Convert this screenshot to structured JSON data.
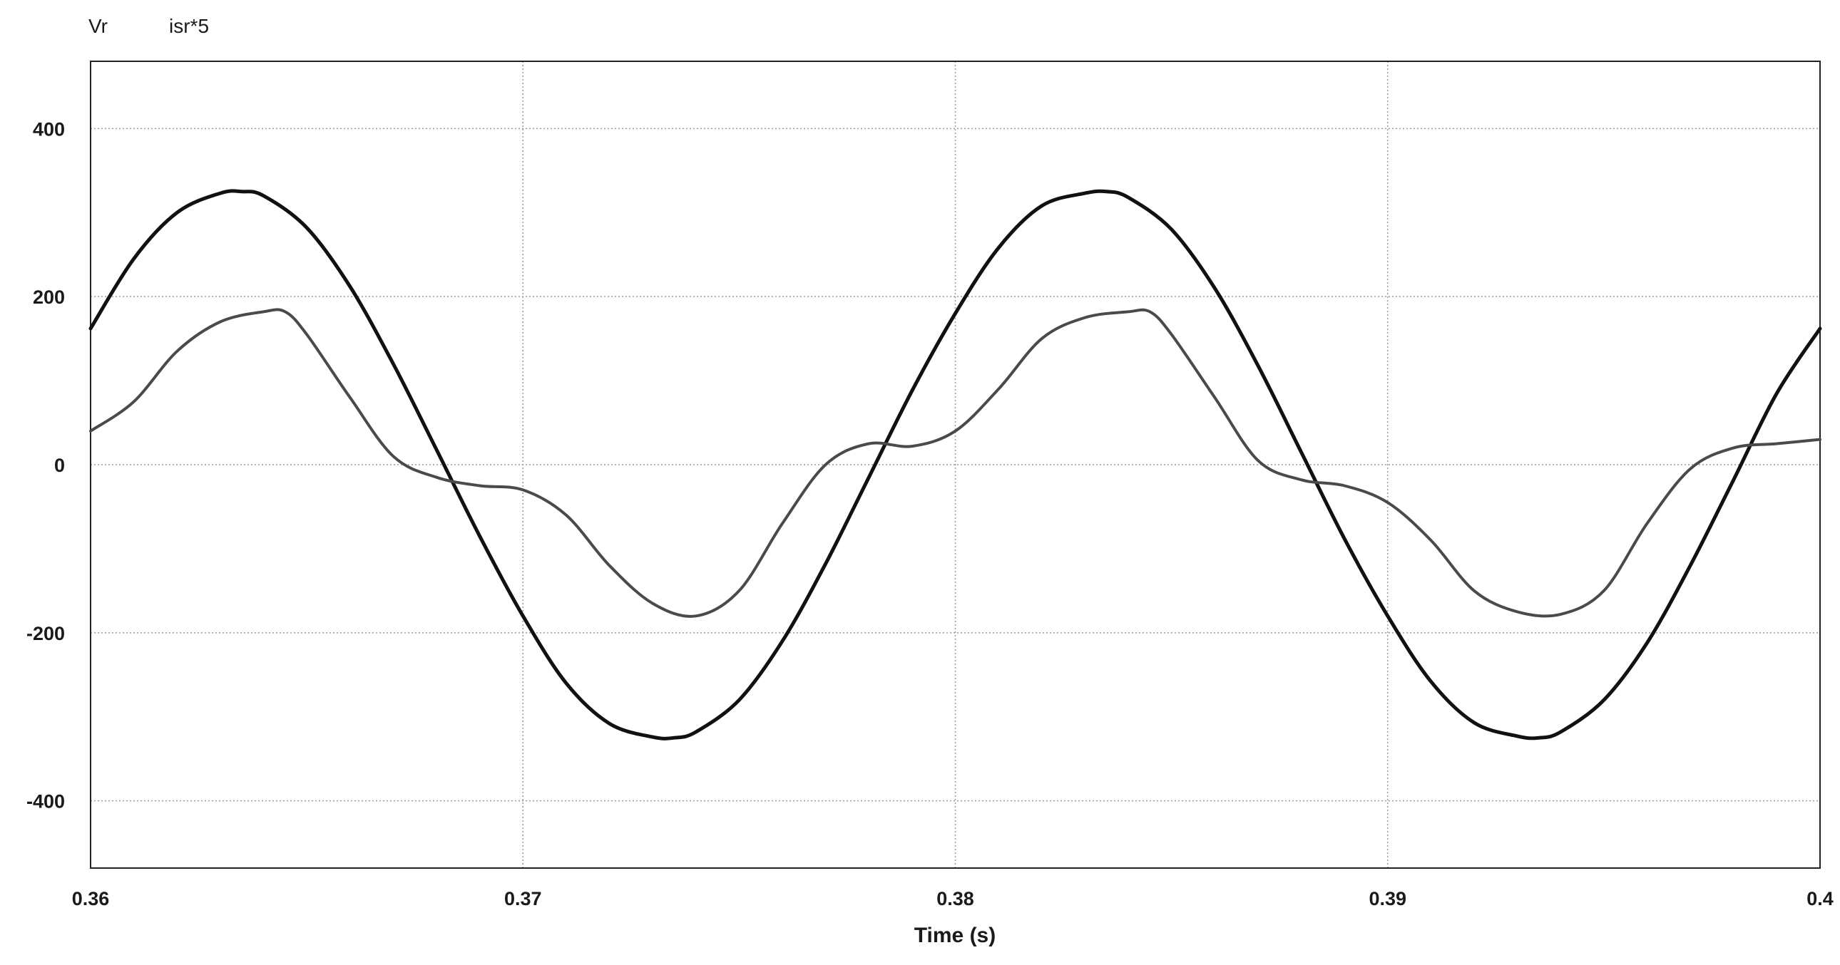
{
  "chart_data": {
    "type": "line",
    "title": "",
    "xlabel": "Time (s)",
    "ylabel": "",
    "xlim": [
      0.36,
      0.4
    ],
    "ylim": [
      -480,
      480
    ],
    "x_ticks": [
      "0.36",
      "0.37",
      "0.38",
      "0.39",
      "0.4"
    ],
    "y_ticks": [
      "400",
      "200",
      "0",
      "-200",
      "-400"
    ],
    "grid": true,
    "legend_position": "top-left",
    "series": [
      {
        "name": "Vr",
        "color": "#111111",
        "x": [
          0.36,
          0.361,
          0.362,
          0.363,
          0.3635,
          0.364,
          0.365,
          0.366,
          0.367,
          0.368,
          0.369,
          0.37,
          0.371,
          0.372,
          0.373,
          0.3735,
          0.374,
          0.375,
          0.376,
          0.377,
          0.378,
          0.379,
          0.38,
          0.381,
          0.382,
          0.383,
          0.3835,
          0.384,
          0.385,
          0.386,
          0.387,
          0.388,
          0.389,
          0.39,
          0.391,
          0.392,
          0.393,
          0.3935,
          0.394,
          0.395,
          0.396,
          0.397,
          0.398,
          0.399,
          0.4
        ],
        "y": [
          162,
          245,
          300,
          323,
          325,
          320,
          282,
          212,
          120,
          18,
          -85,
          -180,
          -260,
          -308,
          -324,
          -325,
          -318,
          -280,
          -210,
          -118,
          -15,
          88,
          180,
          258,
          308,
          323,
          325,
          318,
          280,
          210,
          118,
          15,
          -88,
          -180,
          -258,
          -307,
          -323,
          -325,
          -318,
          -280,
          -212,
          -120,
          -18,
          85,
          162
        ]
      },
      {
        "name": "isr*5",
        "color": "#4a4a4a",
        "x": [
          0.36,
          0.361,
          0.362,
          0.363,
          0.364,
          0.3645,
          0.365,
          0.366,
          0.367,
          0.368,
          0.369,
          0.37,
          0.371,
          0.372,
          0.373,
          0.374,
          0.375,
          0.376,
          0.377,
          0.378,
          0.379,
          0.38,
          0.381,
          0.382,
          0.383,
          0.384,
          0.3845,
          0.385,
          0.386,
          0.387,
          0.388,
          0.389,
          0.39,
          0.391,
          0.392,
          0.393,
          0.394,
          0.395,
          0.396,
          0.397,
          0.398,
          0.399,
          0.4
        ],
        "y": [
          40,
          75,
          135,
          170,
          182,
          182,
          155,
          80,
          10,
          -15,
          -25,
          -30,
          -60,
          -120,
          -165,
          -180,
          -150,
          -70,
          0,
          25,
          22,
          40,
          90,
          150,
          175,
          182,
          182,
          155,
          80,
          5,
          -18,
          -25,
          -45,
          -90,
          -150,
          -175,
          -178,
          -150,
          -70,
          -5,
          20,
          25,
          30
        ]
      }
    ]
  }
}
